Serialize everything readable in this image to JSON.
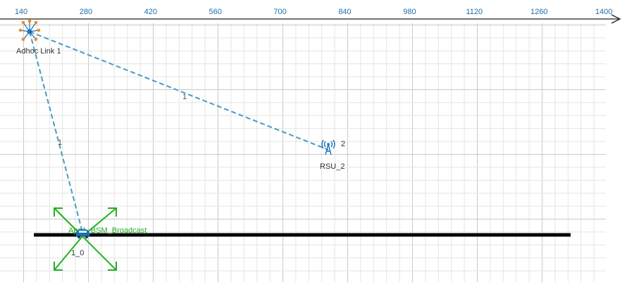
{
  "ruler": {
    "ticks": [
      "140",
      "280",
      "420",
      "560",
      "700",
      "840",
      "980",
      "1120",
      "1260",
      "1400"
    ],
    "color": "#1f6fa8"
  },
  "colors": {
    "grid_minor": "#e4e4e4",
    "grid_major": "#c9c9c9",
    "link": "#4a9bc4",
    "road": "#000000",
    "app": "#22b022",
    "node_icon": "#1a6fb5"
  },
  "nodes": {
    "adhoc": {
      "label": "Adhoc Link 1",
      "icon": "adhoc-link-icon"
    },
    "rsu": {
      "label": "RSU_2",
      "id_label": "2",
      "icon": "rsu-tower-icon"
    },
    "vehicle": {
      "label": "1_0",
      "icon": "car-icon"
    }
  },
  "links": {
    "adhoc_to_rsu": "1",
    "adhoc_to_vehicle": "1"
  },
  "application": {
    "label": "App1_BSM_Broadcast",
    "icon": "move-arrows-icon"
  }
}
